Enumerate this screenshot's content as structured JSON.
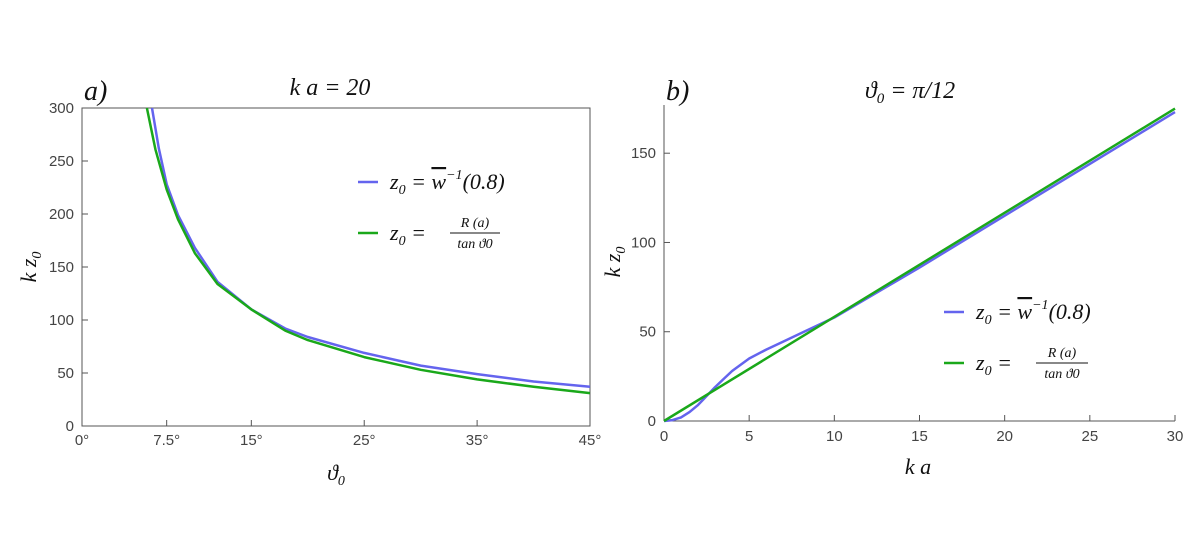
{
  "colors": {
    "blue": "#6464ee",
    "green": "#1aa81a",
    "axis": "#555555"
  },
  "panels": [
    {
      "letter": "a)",
      "title": "k a = 20",
      "xlabel": "ϑ0",
      "ylabel": "k z0",
      "legend": {
        "blue": {
          "lhs": "z0",
          "eq": " = ",
          "main": "w",
          "sup": "−1",
          "arg": "(0.8)"
        },
        "green": {
          "lhs": "z0",
          "eq": " = ",
          "num": "R (a)",
          "den": "tan ϑ0"
        }
      }
    },
    {
      "letter": "b)",
      "title": "ϑ0 = π/12",
      "xlabel": "k a",
      "ylabel": "k z0",
      "legend": {
        "blue": {
          "lhs": "z0",
          "eq": " = ",
          "main": "w",
          "sup": "−1",
          "arg": "(0.8)"
        },
        "green": {
          "lhs": "z0",
          "eq": " = ",
          "num": "R (a)",
          "den": "tan ϑ0"
        }
      }
    }
  ],
  "chart_data": [
    {
      "type": "line",
      "title": "k a = 20",
      "xlabel": "ϑ0",
      "ylabel": "k z0",
      "x_unit": "degrees",
      "xlim": [
        0,
        45
      ],
      "ylim": [
        0,
        300
      ],
      "xticks": [
        0,
        7.5,
        15,
        25,
        35,
        45
      ],
      "xtick_labels": [
        "0°",
        "7.5°",
        "15°",
        "25°",
        "35°",
        "45°"
      ],
      "yticks": [
        0,
        50,
        100,
        150,
        200,
        250,
        300
      ],
      "ytick_labels": [
        "0",
        "50",
        "100",
        "150",
        "200",
        "250",
        "300"
      ],
      "legend_position": "upper-right",
      "series": [
        {
          "name": "z0 = w⁻¹(0.8)",
          "color": "#6464ee",
          "x": [
            6.2,
            6.8,
            7.5,
            8.5,
            10,
            12,
            15,
            18,
            20,
            25,
            30,
            35,
            40,
            45
          ],
          "y": [
            300,
            262,
            228,
            199,
            168,
            136,
            110,
            92,
            84,
            69,
            57,
            49,
            42,
            37
          ]
        },
        {
          "name": "z0 = R(a) / tan ϑ0",
          "color": "#1aa81a",
          "x": [
            5.75,
            6.5,
            7.5,
            8.5,
            10,
            12,
            15,
            18,
            20,
            25,
            30,
            35,
            40,
            45
          ],
          "y": [
            300,
            261,
            223,
            195,
            163,
            134,
            110,
            90,
            81,
            65,
            53,
            44,
            37,
            31
          ]
        }
      ]
    },
    {
      "type": "line",
      "title": "ϑ0 = π/12",
      "xlabel": "k a",
      "ylabel": "k z0",
      "xlim": [
        0,
        30
      ],
      "ylim": [
        0,
        177
      ],
      "xticks": [
        0,
        5,
        10,
        15,
        20,
        25,
        30
      ],
      "yticks": [
        0,
        50,
        100,
        150
      ],
      "legend_position": "lower-right",
      "series": [
        {
          "name": "z0 = w⁻¹(0.8)",
          "color": "#6464ee",
          "x": [
            0,
            0.5,
            1,
            1.5,
            2,
            2.5,
            3,
            3.5,
            4,
            5,
            6,
            7,
            8,
            10,
            15,
            20,
            25,
            30
          ],
          "y": [
            0,
            0.5,
            2,
            5,
            9,
            14,
            19,
            23.5,
            28,
            35,
            40,
            44.5,
            49,
            58,
            86,
            115,
            144,
            173
          ]
        },
        {
          "name": "z0 = R(a) / tan ϑ0",
          "color": "#1aa81a",
          "x": [
            0,
            30
          ],
          "y": [
            0,
            175
          ]
        }
      ]
    }
  ]
}
